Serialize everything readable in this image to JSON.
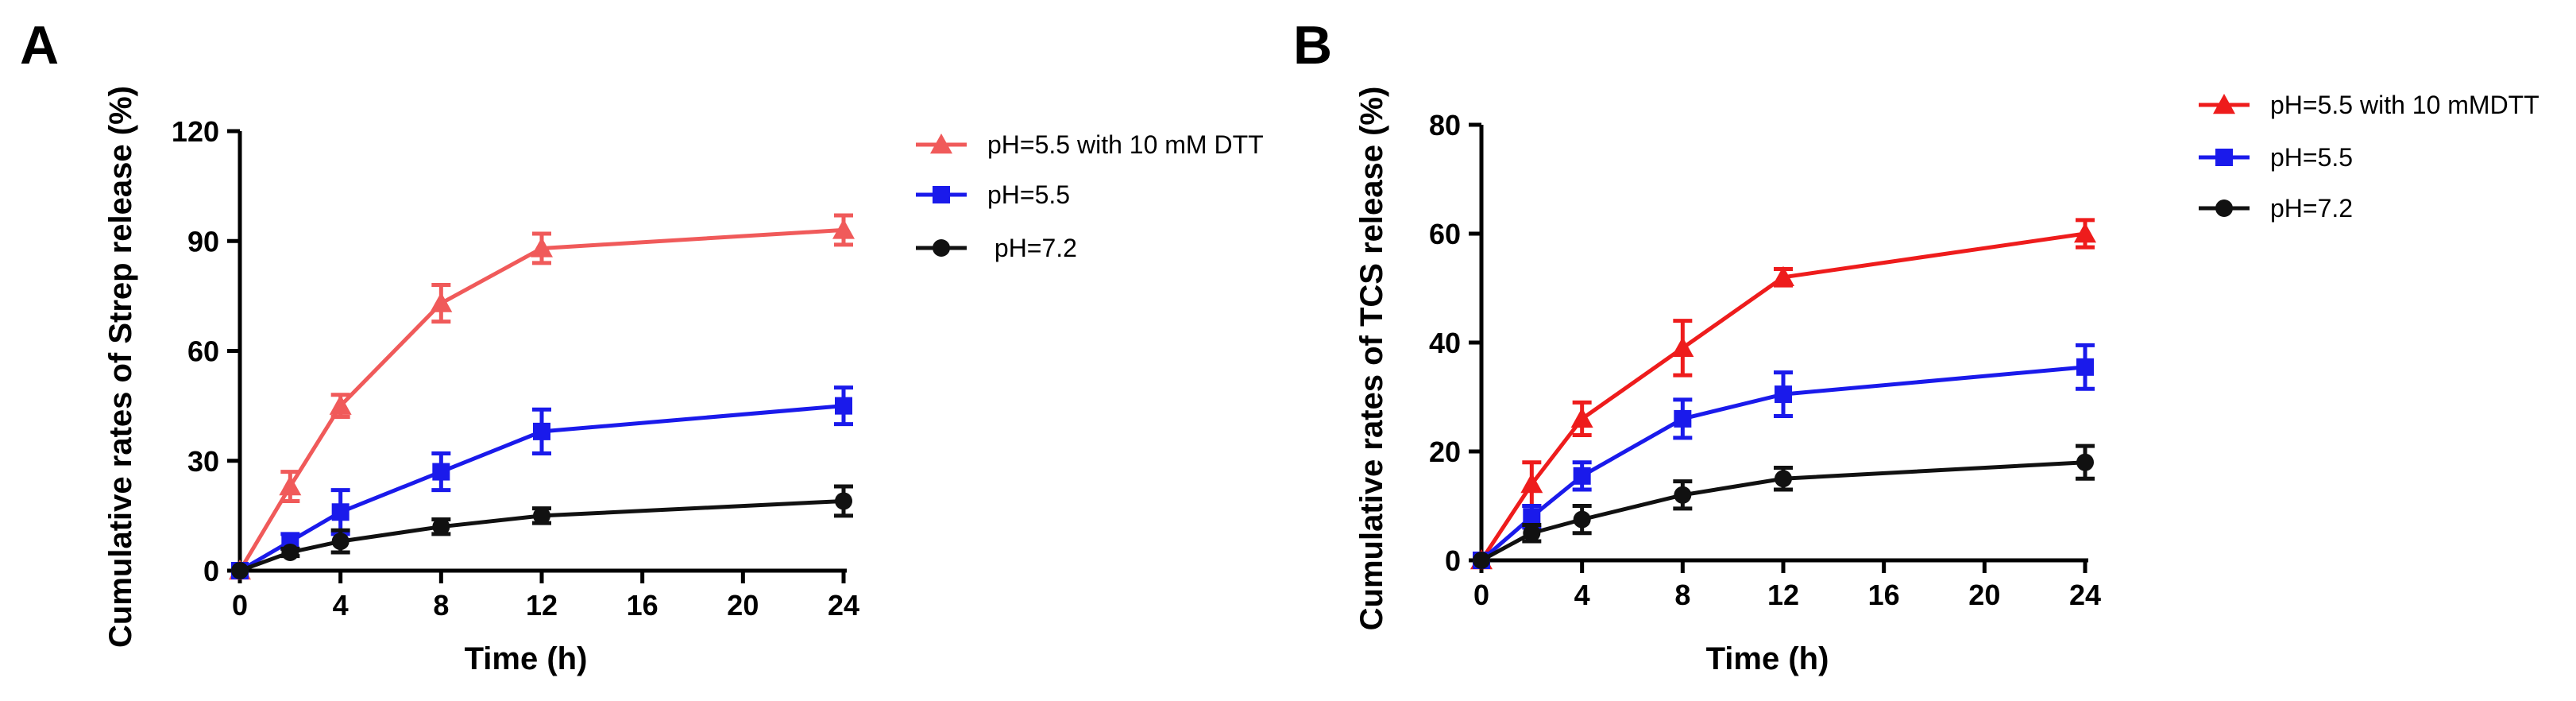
{
  "chart_data": [
    {
      "panel": "A",
      "type": "line",
      "title": "",
      "xlabel": "Time (h)",
      "ylabel": "Cumulative rates of Strep release (%)",
      "x": [
        0,
        2,
        4,
        8,
        12,
        24
      ],
      "xlim": [
        0,
        24
      ],
      "ylim": [
        0,
        120
      ],
      "xticks": [
        "0",
        "4",
        "8",
        "12",
        "16",
        "20",
        "24"
      ],
      "yticks": [
        "0",
        "30",
        "60",
        "90",
        "120"
      ],
      "grid": false,
      "legend_position": "top-right",
      "series": [
        {
          "name": "pH=5.5 with 10 mM DTT",
          "marker": "triangle",
          "color": "#f05a5a",
          "values": [
            0,
            23,
            45,
            73,
            88,
            93
          ],
          "errors": [
            0,
            4,
            3,
            5,
            4,
            4
          ]
        },
        {
          "name": "pH=5.5",
          "marker": "square",
          "color": "#1a1aeb",
          "values": [
            0,
            8,
            16,
            27,
            38,
            45
          ],
          "errors": [
            0,
            2,
            6,
            5,
            6,
            5
          ]
        },
        {
          "name": " pH=7.2",
          "marker": "circle",
          "color": "#111111",
          "values": [
            0,
            5,
            8,
            12,
            15,
            19
          ],
          "errors": [
            0,
            1,
            3,
            2,
            2,
            4
          ]
        }
      ]
    },
    {
      "panel": "B",
      "type": "line",
      "title": "",
      "xlabel": "Time (h)",
      "ylabel": "Cumulative rates of TCS release (%)",
      "x": [
        0,
        2,
        4,
        8,
        12,
        24
      ],
      "xlim": [
        0,
        24
      ],
      "ylim": [
        0,
        80
      ],
      "xticks": [
        "0",
        "4",
        "8",
        "12",
        "16",
        "20",
        "24"
      ],
      "yticks": [
        "0",
        "20",
        "40",
        "60",
        "80"
      ],
      "grid": false,
      "legend_position": "top-right",
      "series": [
        {
          "name": "pH=5.5 with 10 mMDTT",
          "marker": "triangle",
          "color": "#ee1c1c",
          "values": [
            0,
            14,
            26,
            39,
            52,
            60
          ],
          "errors": [
            0,
            4,
            3,
            5,
            1.5,
            2.5
          ]
        },
        {
          "name": "pH=5.5",
          "marker": "square",
          "color": "#1a1aeb",
          "values": [
            0,
            8,
            15.5,
            26,
            30.5,
            35.5
          ],
          "errors": [
            0,
            2,
            2.5,
            3.5,
            4,
            4
          ]
        },
        {
          "name": "pH=7.2",
          "marker": "circle",
          "color": "#111111",
          "values": [
            0,
            5,
            7.5,
            12,
            15,
            18
          ],
          "errors": [
            0,
            1.5,
            2.5,
            2.5,
            2,
            3
          ]
        }
      ]
    }
  ]
}
